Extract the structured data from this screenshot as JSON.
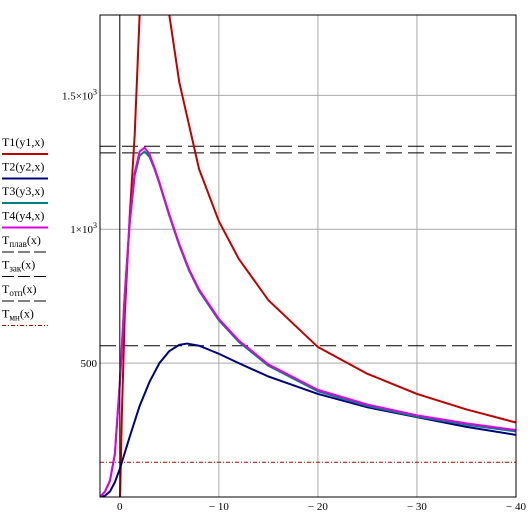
{
  "chart_data": {
    "type": "line",
    "title": "",
    "xlabel": "",
    "ylabel": "",
    "xlim": [
      2,
      -40
    ],
    "ylim": [
      0,
      1800
    ],
    "grid": true,
    "x_ticks": [
      {
        "value": 0,
        "label": "0"
      },
      {
        "value": -10,
        "label": "− 10"
      },
      {
        "value": -20,
        "label": "− 20"
      },
      {
        "value": -30,
        "label": "− 30"
      },
      {
        "value": -40,
        "label": "− 40"
      }
    ],
    "y_ticks": [
      {
        "value": 500,
        "mantissa": "500",
        "exponent": ""
      },
      {
        "value": 1000,
        "mantissa": "1×10",
        "exponent": "3"
      },
      {
        "value": 1500,
        "mantissa": "1.5×10",
        "exponent": "3"
      }
    ],
    "legend_position": "left",
    "series": [
      {
        "name": "T1(y1,x)",
        "color": "#c00000",
        "dash": "solid",
        "x": [
          -0.03,
          -0.2,
          -0.5,
          -1.0,
          -1.5,
          -2.0,
          -3.0,
          -4.0,
          -5.0,
          -6.0,
          -8.0,
          -10.0,
          -12.0,
          -15.0,
          -20.0,
          -25.0,
          -30.0,
          -35.0,
          -40.0
        ],
        "y": [
          0,
          300,
          680,
          1050,
          1350,
          1800,
          3000,
          2200,
          1800,
          1550,
          1225,
          1030,
          890,
          735,
          560,
          460,
          385,
          327,
          278
        ]
      },
      {
        "name": "T2(y2,x)",
        "color": "#00007f",
        "dash": "solid",
        "x": [
          2.0,
          1.5,
          1.0,
          0.5,
          0.0,
          -1.0,
          -2.0,
          -3.0,
          -4.0,
          -5.0,
          -6.0,
          -6.8,
          -8.0,
          -10.0,
          -12.0,
          -15.0,
          -20.0,
          -25.0,
          -30.0,
          -35.0,
          -40.0
        ],
        "y": [
          0,
          5,
          20,
          55,
          105,
          225,
          340,
          430,
          500,
          545,
          568,
          573,
          565,
          535,
          500,
          450,
          385,
          335,
          298,
          262,
          232
        ]
      },
      {
        "name": "T3(y3,x)",
        "color": "#008080",
        "dash": "solid",
        "x": [
          2.0,
          1.5,
          1.0,
          0.5,
          0.0,
          -0.5,
          -1.0,
          -1.5,
          -2.0,
          -2.5,
          -3.0,
          -3.5,
          -4.0,
          -5.0,
          -6.0,
          -7.0,
          -8.0,
          -10.0,
          -12.0,
          -15.0,
          -20.0,
          -25.0,
          -30.0,
          -35.0,
          -40.0
        ],
        "y": [
          0,
          20,
          60,
          160,
          420,
          750,
          1020,
          1200,
          1275,
          1290,
          1270,
          1225,
          1170,
          1050,
          940,
          845,
          770,
          660,
          580,
          490,
          395,
          340,
          300,
          270,
          245
        ]
      },
      {
        "name": "T4(y4,x)",
        "color": "#e000e0",
        "dash": "solid",
        "x": [
          2.0,
          1.5,
          1.0,
          0.5,
          0.0,
          -0.5,
          -1.0,
          -1.5,
          -2.0,
          -2.5,
          -3.0,
          -3.5,
          -4.0,
          -5.0,
          -6.0,
          -7.0,
          -8.0,
          -10.0,
          -12.0,
          -15.0,
          -20.0,
          -25.0,
          -30.0,
          -35.0,
          -40.0
        ],
        "y": [
          0,
          20,
          60,
          160,
          430,
          760,
          1030,
          1210,
          1290,
          1305,
          1280,
          1230,
          1175,
          1055,
          945,
          850,
          775,
          665,
          585,
          495,
          400,
          345,
          305,
          275,
          250
        ]
      },
      {
        "name": "T_плав(x)",
        "name_base": "T",
        "name_sub": "плав",
        "name_tail": "(x)",
        "color": "#000000",
        "dash": "long-dash",
        "x": [
          2,
          -40
        ],
        "y": [
          1310,
          1310
        ]
      },
      {
        "name": "T_зак(x)",
        "name_base": "T",
        "name_sub": "зак",
        "name_tail": "(x)",
        "color": "#000000",
        "dash": "long-dash",
        "x": [
          2,
          -40
        ],
        "y": [
          1285,
          1285
        ]
      },
      {
        "name": "T_отп(x)",
        "name_base": "T",
        "name_sub": "отп",
        "name_tail": "(x)",
        "color": "#000000",
        "dash": "long-dash",
        "x": [
          2,
          -40
        ],
        "y": [
          565,
          565
        ]
      },
      {
        "name": "T_мн(x)",
        "name_base": "T",
        "name_sub": "мн",
        "name_tail": "(x)",
        "color": "#c00000",
        "dash": "dash-dot",
        "x": [
          2,
          -40
        ],
        "y": [
          130,
          130
        ]
      }
    ]
  }
}
